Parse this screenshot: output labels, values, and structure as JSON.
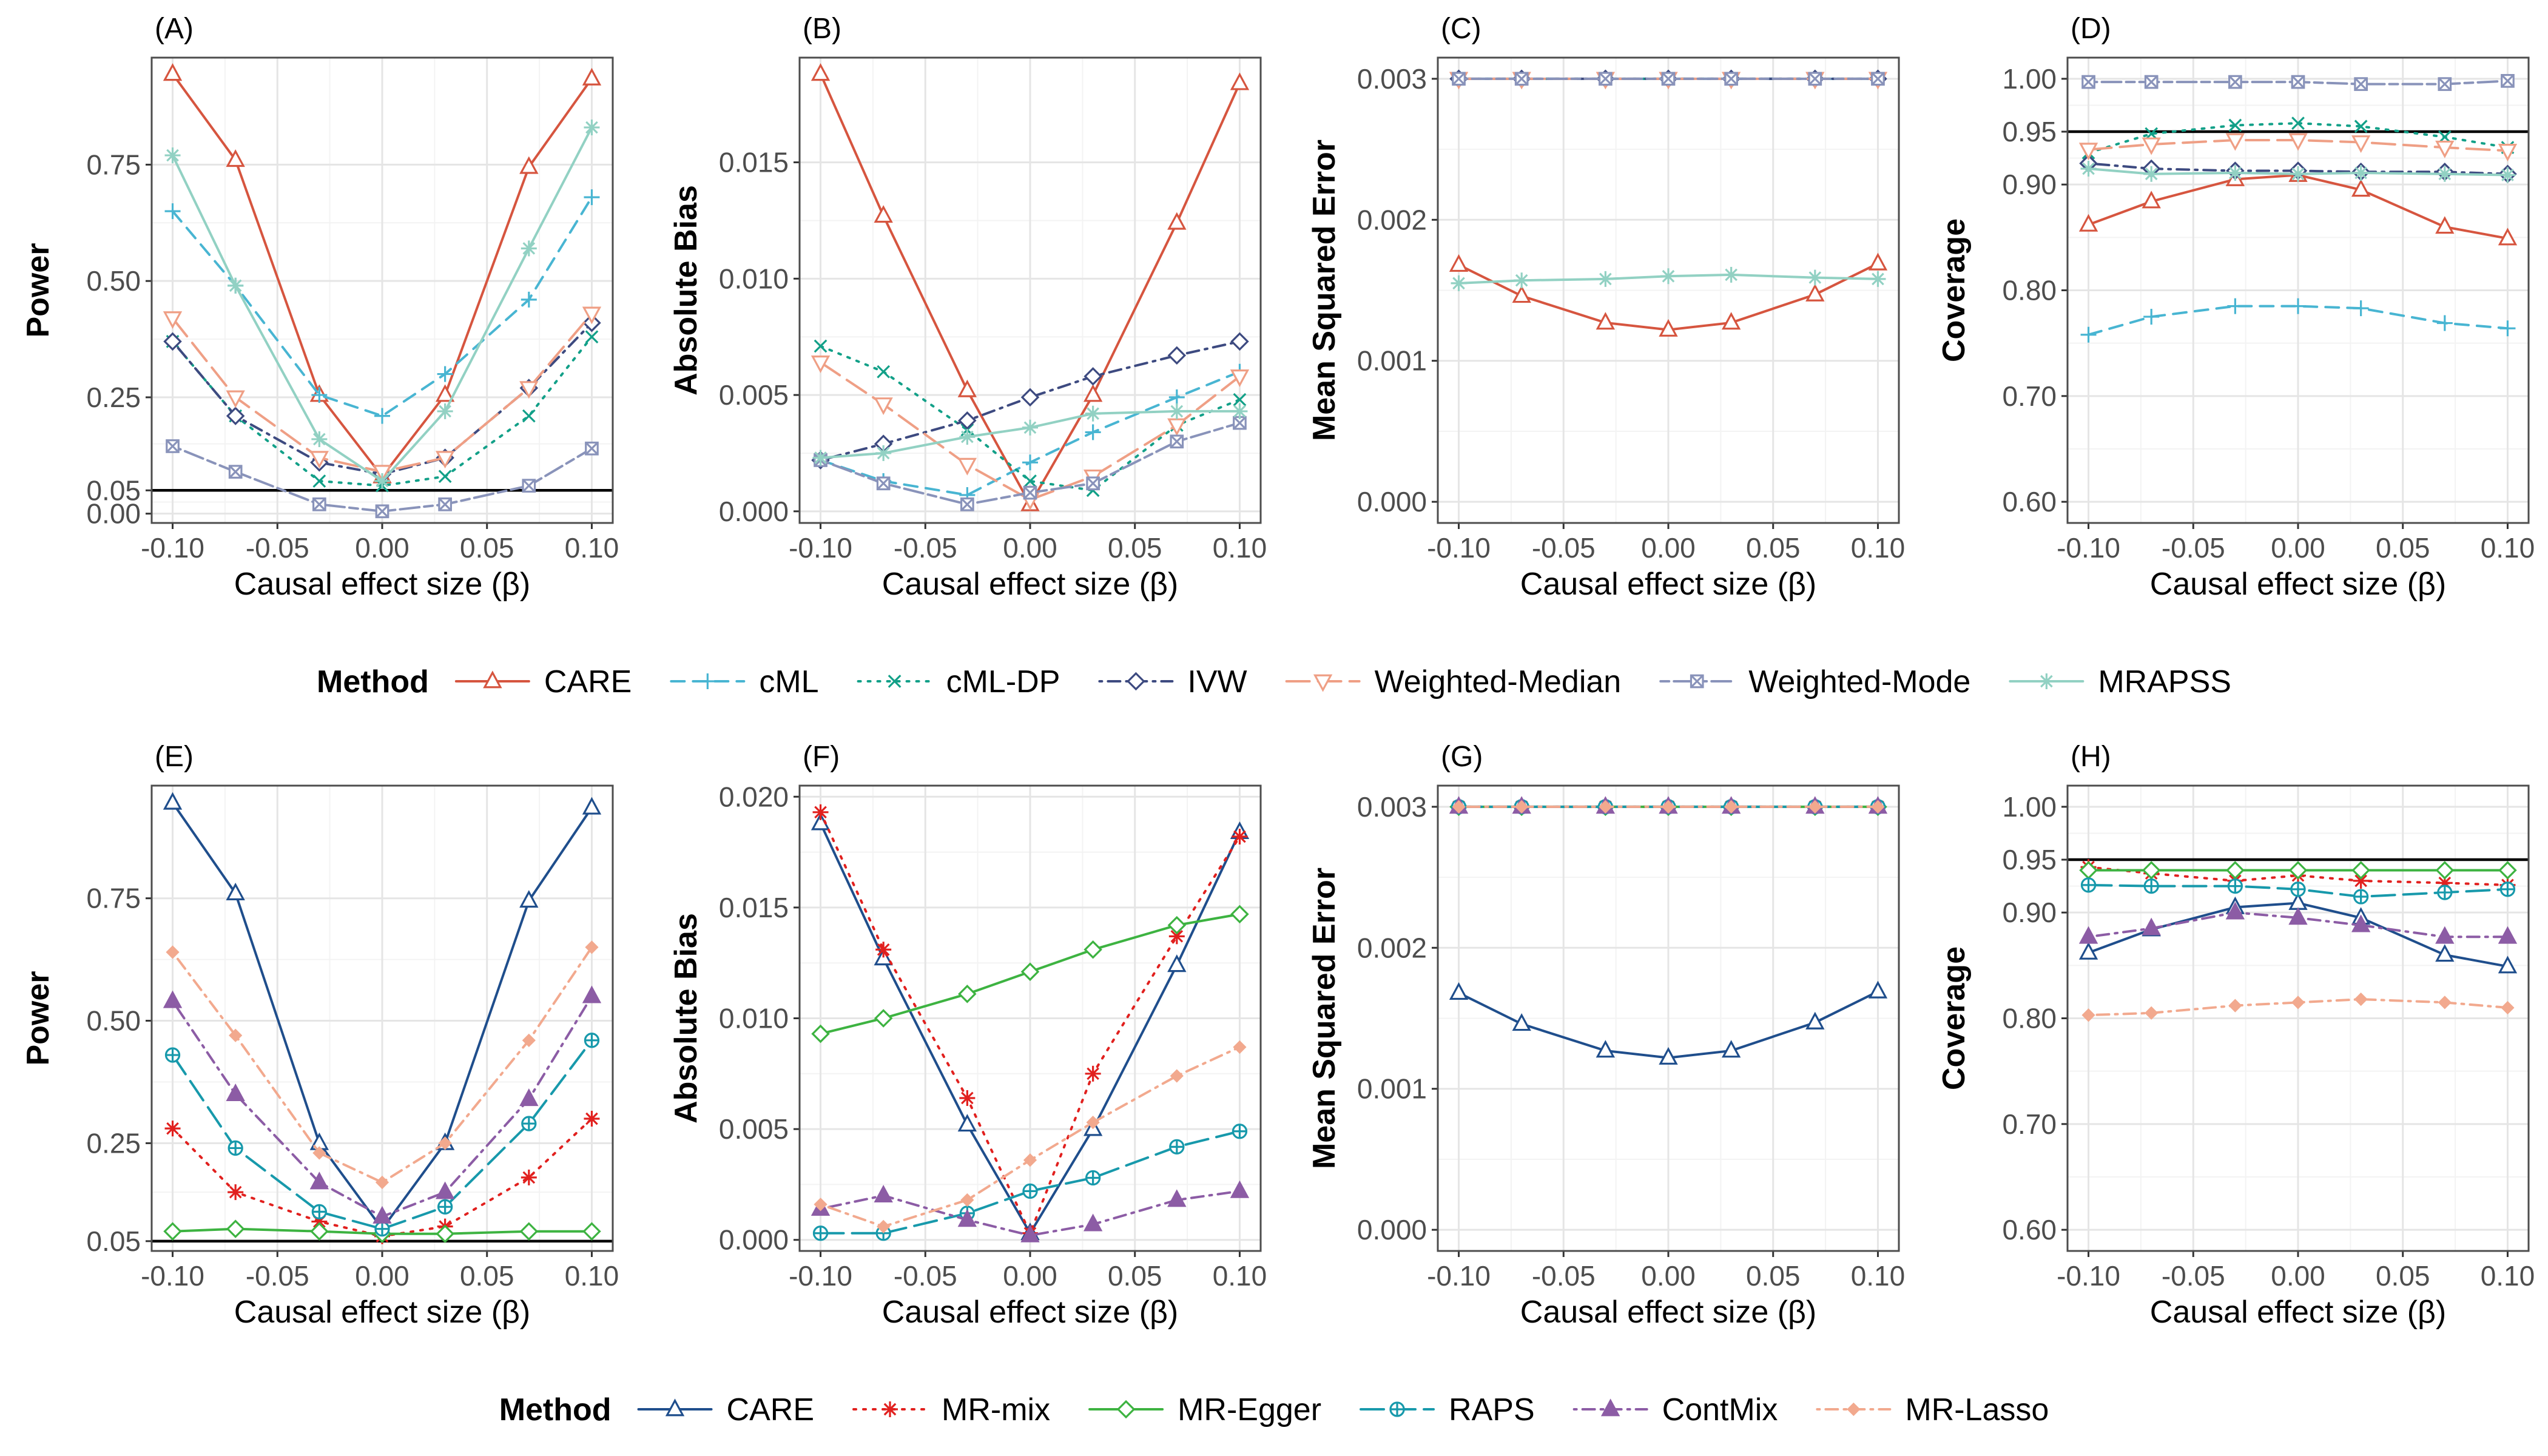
{
  "chart_data": [
    {
      "panel": "(A)",
      "type": "line",
      "ylabel": "Power",
      "xlabel": "Causal effect size (β)",
      "x": [
        -0.1,
        -0.07,
        -0.03,
        0.0,
        0.03,
        0.07,
        0.1
      ],
      "xticks": [
        "-0.10",
        "-0.05",
        "0.00",
        "0.05",
        "0.10"
      ],
      "ylim": [
        -0.02,
        0.98
      ],
      "yticks": [
        "0.00",
        "0.05",
        "0.25",
        "0.50",
        "0.75"
      ],
      "hline": 0.05,
      "series": [
        {
          "name": "CARE",
          "values": [
            0.945,
            0.76,
            0.255,
            0.08,
            0.255,
            0.745,
            0.935
          ]
        },
        {
          "name": "cML",
          "values": [
            0.65,
            0.49,
            0.255,
            0.21,
            0.3,
            0.46,
            0.68
          ]
        },
        {
          "name": "cML-DP",
          "values": [
            0.37,
            0.21,
            0.07,
            0.06,
            0.08,
            0.21,
            0.38
          ]
        },
        {
          "name": "IVW",
          "values": [
            0.37,
            0.21,
            0.11,
            0.085,
            0.12,
            0.27,
            0.41
          ]
        },
        {
          "name": "Weighted-Median",
          "values": [
            0.42,
            0.25,
            0.12,
            0.09,
            0.12,
            0.27,
            0.43
          ]
        },
        {
          "name": "Weighted-Mode",
          "values": [
            0.145,
            0.09,
            0.02,
            0.005,
            0.02,
            0.06,
            0.14
          ]
        },
        {
          "name": "MRAPSS",
          "values": [
            0.77,
            0.49,
            0.16,
            0.07,
            0.22,
            0.57,
            0.83
          ]
        }
      ]
    },
    {
      "panel": "(B)",
      "type": "line",
      "ylabel": "Absolute Bias",
      "xlabel": "Causal effect size (β)",
      "x": [
        -0.1,
        -0.07,
        -0.03,
        0.0,
        0.03,
        0.07,
        0.1
      ],
      "xticks": [
        "-0.10",
        "-0.05",
        "0.00",
        "0.05",
        "0.10"
      ],
      "ylim": [
        -0.0005,
        0.0195
      ],
      "yticks": [
        "0.000",
        "0.005",
        "0.010",
        "0.015"
      ],
      "hline": null,
      "series": [
        {
          "name": "CARE",
          "values": [
            0.0188,
            0.0127,
            0.0052,
            0.0003,
            0.005,
            0.0124,
            0.0184
          ]
        },
        {
          "name": "cML",
          "values": [
            0.0022,
            0.0013,
            0.0007,
            0.0021,
            0.0034,
            0.0049,
            0.006
          ]
        },
        {
          "name": "cML-DP",
          "values": [
            0.0071,
            0.006,
            0.0035,
            0.0013,
            0.0009,
            0.0037,
            0.0048
          ]
        },
        {
          "name": "IVW",
          "values": [
            0.0022,
            0.0029,
            0.0039,
            0.0049,
            0.0058,
            0.0067,
            0.0073
          ]
        },
        {
          "name": "Weighted-Median",
          "values": [
            0.0064,
            0.0046,
            0.002,
            0.0005,
            0.0015,
            0.0037,
            0.0058
          ]
        },
        {
          "name": "Weighted-Mode",
          "values": [
            0.0022,
            0.0012,
            0.0003,
            0.0008,
            0.0012,
            0.003,
            0.0038
          ]
        },
        {
          "name": "MRAPSS",
          "values": [
            0.0023,
            0.0025,
            0.0032,
            0.0036,
            0.0042,
            0.0043,
            0.0043
          ]
        }
      ]
    },
    {
      "panel": "(C)",
      "type": "line",
      "ylabel": "Mean Squared Error",
      "xlabel": "Causal effect size (β)",
      "x": [
        -0.1,
        -0.07,
        -0.03,
        0.0,
        0.03,
        0.07,
        0.1
      ],
      "xticks": [
        "-0.10",
        "-0.05",
        "0.00",
        "0.05",
        "0.10"
      ],
      "ylim": [
        -0.00015,
        0.00315
      ],
      "yticks": [
        "0.000",
        "0.001",
        "0.002",
        "0.003"
      ],
      "hline": null,
      "series": [
        {
          "name": "CARE",
          "values": [
            0.00168,
            0.00146,
            0.00127,
            0.00122,
            0.00127,
            0.00147,
            0.00169
          ]
        },
        {
          "name": "cML",
          "values": [
            0.003,
            0.003,
            0.003,
            0.003,
            0.003,
            0.003,
            0.003
          ]
        },
        {
          "name": "cML-DP",
          "values": [
            0.003,
            0.003,
            0.003,
            0.003,
            0.003,
            0.003,
            0.003
          ]
        },
        {
          "name": "IVW",
          "values": [
            0.003,
            0.003,
            0.003,
            0.003,
            0.003,
            0.003,
            0.003
          ]
        },
        {
          "name": "Weighted-Median",
          "values": [
            0.003,
            0.003,
            0.003,
            0.003,
            0.003,
            0.003,
            0.003
          ]
        },
        {
          "name": "Weighted-Mode",
          "values": [
            0.003,
            0.003,
            0.003,
            0.003,
            0.003,
            0.003,
            0.003
          ]
        },
        {
          "name": "MRAPSS",
          "values": [
            0.00155,
            0.00157,
            0.00158,
            0.0016,
            0.00161,
            0.00159,
            0.00158
          ]
        }
      ]
    },
    {
      "panel": "(D)",
      "type": "line",
      "ylabel": "Coverage",
      "xlabel": "Causal effect size (β)",
      "x": [
        -0.1,
        -0.07,
        -0.03,
        0.0,
        0.03,
        0.07,
        0.1
      ],
      "xticks": [
        "-0.10",
        "-0.05",
        "0.00",
        "0.05",
        "0.10"
      ],
      "ylim": [
        0.58,
        1.02
      ],
      "yticks": [
        "0.60",
        "0.70",
        "0.80",
        "0.90",
        "0.95",
        "1.00"
      ],
      "hline": 0.95,
      "series": [
        {
          "name": "CARE",
          "values": [
            0.862,
            0.884,
            0.905,
            0.909,
            0.895,
            0.86,
            0.849
          ]
        },
        {
          "name": "cML",
          "values": [
            0.758,
            0.775,
            0.785,
            0.785,
            0.783,
            0.769,
            0.764
          ]
        },
        {
          "name": "cML-DP",
          "values": [
            0.93,
            0.948,
            0.956,
            0.958,
            0.955,
            0.945,
            0.935
          ]
        },
        {
          "name": "IVW",
          "values": [
            0.92,
            0.915,
            0.913,
            0.913,
            0.912,
            0.912,
            0.91
          ]
        },
        {
          "name": "Weighted-Median",
          "values": [
            0.933,
            0.938,
            0.942,
            0.942,
            0.94,
            0.935,
            0.932
          ]
        },
        {
          "name": "Weighted-Mode",
          "values": [
            0.997,
            0.997,
            0.997,
            0.997,
            0.995,
            0.995,
            0.998
          ]
        },
        {
          "name": "MRAPSS",
          "values": [
            0.915,
            0.91,
            0.911,
            0.91,
            0.911,
            0.91,
            0.909
          ]
        }
      ]
    },
    {
      "panel": "(E)",
      "type": "line",
      "ylabel": "Power",
      "xlabel": "Causal effect size (β)",
      "x": [
        -0.1,
        -0.07,
        -0.03,
        0.0,
        0.03,
        0.07,
        0.1
      ],
      "xticks": [
        "-0.10",
        "-0.05",
        "0.00",
        "0.05",
        "0.10"
      ],
      "ylim": [
        0.03,
        0.98
      ],
      "yticks": [
        "0.05",
        "0.25",
        "0.50",
        "0.75"
      ],
      "hline": 0.05,
      "series": [
        {
          "name": "CARE",
          "values": [
            0.945,
            0.76,
            0.25,
            0.075,
            0.25,
            0.745,
            0.935
          ]
        },
        {
          "name": "MR-mix",
          "values": [
            0.28,
            0.15,
            0.09,
            0.06,
            0.08,
            0.18,
            0.3
          ]
        },
        {
          "name": "MR-Egger",
          "values": [
            0.07,
            0.075,
            0.07,
            0.065,
            0.065,
            0.07,
            0.07
          ]
        },
        {
          "name": "RAPS",
          "values": [
            0.43,
            0.24,
            0.11,
            0.075,
            0.12,
            0.29,
            0.46
          ]
        },
        {
          "name": "ContMix",
          "values": [
            0.54,
            0.35,
            0.17,
            0.1,
            0.15,
            0.34,
            0.55
          ]
        },
        {
          "name": "MR-Lasso",
          "values": [
            0.64,
            0.47,
            0.23,
            0.17,
            0.25,
            0.46,
            0.65
          ]
        }
      ]
    },
    {
      "panel": "(F)",
      "type": "line",
      "ylabel": "Absolute Bias",
      "xlabel": "Causal effect size (β)",
      "x": [
        -0.1,
        -0.07,
        -0.03,
        0.0,
        0.03,
        0.07,
        0.1
      ],
      "xticks": [
        "-0.10",
        "-0.05",
        "0.00",
        "0.05",
        "0.10"
      ],
      "ylim": [
        -0.0005,
        0.0205
      ],
      "yticks": [
        "0.000",
        "0.005",
        "0.010",
        "0.015",
        "0.020"
      ],
      "hline": null,
      "series": [
        {
          "name": "CARE",
          "values": [
            0.0188,
            0.0127,
            0.0052,
            0.0003,
            0.005,
            0.0124,
            0.0184
          ]
        },
        {
          "name": "MR-mix",
          "values": [
            0.0193,
            0.0131,
            0.0064,
            0.0003,
            0.0075,
            0.0137,
            0.0182
          ]
        },
        {
          "name": "MR-Egger",
          "values": [
            0.0093,
            0.01,
            0.0111,
            0.0121,
            0.0131,
            0.0142,
            0.0147
          ]
        },
        {
          "name": "RAPS",
          "values": [
            0.0003,
            0.0003,
            0.0012,
            0.0022,
            0.0028,
            0.0042,
            0.0049
          ]
        },
        {
          "name": "ContMix",
          "values": [
            0.0014,
            0.002,
            0.0009,
            0.0002,
            0.0007,
            0.0018,
            0.0022
          ]
        },
        {
          "name": "MR-Lasso",
          "values": [
            0.0016,
            0.0006,
            0.0018,
            0.0036,
            0.0053,
            0.0074,
            0.0087
          ]
        }
      ]
    },
    {
      "panel": "(G)",
      "type": "line",
      "ylabel": "Mean Squared Error",
      "xlabel": "Causal effect size (β)",
      "x": [
        -0.1,
        -0.07,
        -0.03,
        0.0,
        0.03,
        0.07,
        0.1
      ],
      "xticks": [
        "-0.10",
        "-0.05",
        "0.00",
        "0.05",
        "0.10"
      ],
      "ylim": [
        -0.00015,
        0.00315
      ],
      "yticks": [
        "0.000",
        "0.001",
        "0.002",
        "0.003"
      ],
      "hline": null,
      "series": [
        {
          "name": "CARE",
          "values": [
            0.00168,
            0.00146,
            0.00127,
            0.00122,
            0.00127,
            0.00147,
            0.00169
          ]
        },
        {
          "name": "MR-mix",
          "values": [
            0.003,
            0.003,
            0.003,
            0.003,
            0.003,
            0.003,
            0.003
          ]
        },
        {
          "name": "MR-Egger",
          "values": [
            0.003,
            0.003,
            0.003,
            0.003,
            0.003,
            0.003,
            0.003
          ]
        },
        {
          "name": "RAPS",
          "values": [
            0.003,
            0.003,
            0.003,
            0.003,
            0.003,
            0.003,
            0.003
          ]
        },
        {
          "name": "ContMix",
          "values": [
            0.003,
            0.003,
            0.003,
            0.003,
            0.003,
            0.003,
            0.003
          ]
        },
        {
          "name": "MR-Lasso",
          "values": [
            0.003,
            0.003,
            0.003,
            0.003,
            0.003,
            0.003,
            0.003
          ]
        }
      ]
    },
    {
      "panel": "(H)",
      "type": "line",
      "ylabel": "Coverage",
      "xlabel": "Causal effect size (β)",
      "x": [
        -0.1,
        -0.07,
        -0.03,
        0.0,
        0.03,
        0.07,
        0.1
      ],
      "xticks": [
        "-0.10",
        "-0.05",
        "0.00",
        "0.05",
        "0.10"
      ],
      "ylim": [
        0.58,
        1.02
      ],
      "yticks": [
        "0.60",
        "0.70",
        "0.80",
        "0.90",
        "0.95",
        "1.00"
      ],
      "hline": 0.95,
      "series": [
        {
          "name": "CARE",
          "values": [
            0.862,
            0.884,
            0.905,
            0.909,
            0.895,
            0.86,
            0.849
          ]
        },
        {
          "name": "MR-mix",
          "values": [
            0.943,
            0.937,
            0.93,
            0.935,
            0.93,
            0.928,
            0.926
          ]
        },
        {
          "name": "MR-Egger",
          "values": [
            0.94,
            0.94,
            0.94,
            0.94,
            0.94,
            0.94,
            0.94
          ]
        },
        {
          "name": "RAPS",
          "values": [
            0.926,
            0.925,
            0.925,
            0.922,
            0.915,
            0.919,
            0.922
          ]
        },
        {
          "name": "ContMix",
          "values": [
            0.877,
            0.885,
            0.9,
            0.895,
            0.888,
            0.877,
            0.877
          ]
        },
        {
          "name": "MR-Lasso",
          "values": [
            0.803,
            0.805,
            0.812,
            0.815,
            0.818,
            0.815,
            0.81
          ]
        }
      ]
    }
  ],
  "legends": [
    {
      "title": "Method",
      "items": [
        "CARE",
        "cML",
        "cML-DP",
        "IVW",
        "Weighted-Median",
        "Weighted-Mode",
        "MRAPSS"
      ]
    },
    {
      "title": "Method",
      "items": [
        "CARE",
        "MR-mix",
        "MR-Egger",
        "RAPS",
        "ContMix",
        "MR-Lasso"
      ]
    }
  ],
  "styles": {
    "CARE": {
      "color": "#d6553f",
      "marker": "triangle-up",
      "dash": "solid"
    },
    "cML": {
      "color": "#48b5d2",
      "marker": "plus",
      "dash": "dashed"
    },
    "cML-DP": {
      "color": "#12a088",
      "marker": "cross",
      "dash": "dotted"
    },
    "IVW": {
      "color": "#3d4a80",
      "marker": "diamond",
      "dash": "dotdash"
    },
    "Weighted-Median": {
      "color": "#ef9f85",
      "marker": "triangle-down",
      "dash": "longdash"
    },
    "Weighted-Mode": {
      "color": "#8993ba",
      "marker": "boxed-x",
      "dash": "twodash"
    },
    "MRAPSS": {
      "color": "#92d1c3",
      "marker": "asterisk",
      "dash": "solid"
    },
    "CARE_B": {
      "color": "#1f4e8c",
      "marker": "triangle-up",
      "dash": "solid"
    },
    "MR-mix": {
      "color": "#e1201e",
      "marker": "asterisk",
      "dash": "dotted"
    },
    "MR-Egger": {
      "color": "#3db341",
      "marker": "diamond",
      "dash": "solid"
    },
    "RAPS": {
      "color": "#1799ab",
      "marker": "circle-plus",
      "dash": "longdash"
    },
    "ContMix": {
      "color": "#8c5ca5",
      "marker": "filled-triangle",
      "dash": "dotdash"
    },
    "MR-Lasso": {
      "color": "#f2a98e",
      "marker": "filled-diamond",
      "dash": "dotdash"
    }
  }
}
